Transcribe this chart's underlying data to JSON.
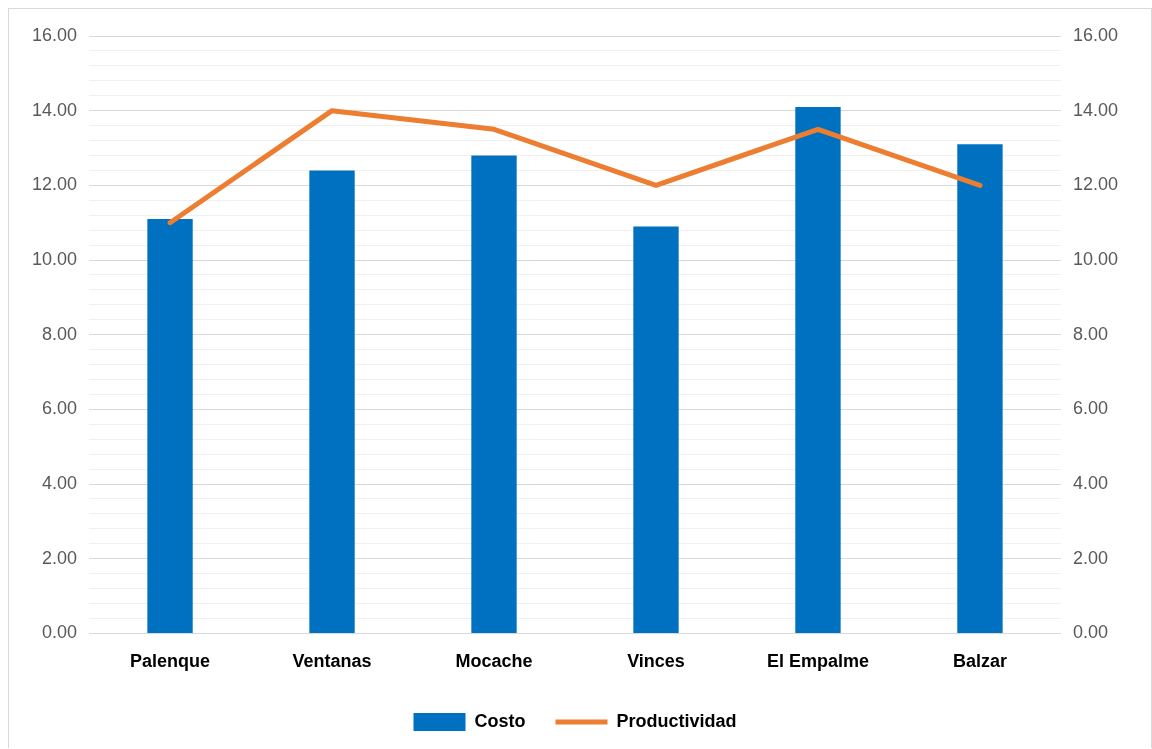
{
  "chart_data": {
    "type": "bar",
    "categories": [
      "Palenque",
      "Ventanas",
      "Mocache",
      "Vinces",
      "El Empalme",
      "Balzar"
    ],
    "series": [
      {
        "name": "Costo",
        "color": "#0070c0",
        "values": [
          11.1,
          12.4,
          12.8,
          10.9,
          14.1,
          13.1
        ]
      },
      {
        "name": "Productividad",
        "type": "line",
        "axis": "y2",
        "color": "#ed7d31",
        "values": [
          11.0,
          14.0,
          13.5,
          12.0,
          13.5,
          12.0
        ]
      }
    ],
    "ylim": [
      0,
      16
    ],
    "y2lim": [
      0,
      16
    ],
    "yticks": [
      {
        "value": 0,
        "label": "0.00"
      },
      {
        "value": 0.4,
        "label": null
      },
      {
        "value": 0.8,
        "label": null
      },
      {
        "value": 1.2,
        "label": null
      },
      {
        "value": 1.6,
        "label": null
      },
      {
        "value": 2,
        "label": "2.00"
      },
      {
        "value": 2.4,
        "label": null
      },
      {
        "value": 2.8,
        "label": null
      },
      {
        "value": 3.2,
        "label": null
      },
      {
        "value": 3.6,
        "label": null
      },
      {
        "value": 4,
        "label": "4.00"
      },
      {
        "value": 4.4,
        "label": null
      },
      {
        "value": 4.8,
        "label": null
      },
      {
        "value": 5.2,
        "label": null
      },
      {
        "value": 5.6,
        "label": null
      },
      {
        "value": 6,
        "label": "6.00"
      },
      {
        "value": 6.4,
        "label": null
      },
      {
        "value": 6.8,
        "label": null
      },
      {
        "value": 7.2,
        "label": null
      },
      {
        "value": 7.6,
        "label": null
      },
      {
        "value": 8,
        "label": "8.00"
      },
      {
        "value": 8.4,
        "label": null
      },
      {
        "value": 8.8,
        "label": null
      },
      {
        "value": 9.2,
        "label": null
      },
      {
        "value": 9.6,
        "label": null
      },
      {
        "value": 10,
        "label": "10.00"
      },
      {
        "value": 10.4,
        "label": null
      },
      {
        "value": 10.8,
        "label": null
      },
      {
        "value": 11.2,
        "label": null
      },
      {
        "value": 11.6,
        "label": null
      },
      {
        "value": 12,
        "label": "12.00"
      },
      {
        "value": 12.4,
        "label": null
      },
      {
        "value": 12.8,
        "label": null
      },
      {
        "value": 13.2,
        "label": null
      },
      {
        "value": 13.6,
        "label": null
      },
      {
        "value": 14,
        "label": "14.00"
      },
      {
        "value": 14.4,
        "label": null
      },
      {
        "value": 14.8,
        "label": null
      },
      {
        "value": 15.2,
        "label": null
      },
      {
        "value": 15.6,
        "label": null
      },
      {
        "value": 16,
        "label": "16.00"
      }
    ],
    "y2ticks": [
      {
        "value": 0,
        "label": "0.00"
      },
      {
        "value": 2,
        "label": "2.00"
      },
      {
        "value": 4,
        "label": "4.00"
      },
      {
        "value": 6,
        "label": "6.00"
      },
      {
        "value": 8,
        "label": "8.00"
      },
      {
        "value": 10,
        "label": "10.00"
      },
      {
        "value": 12,
        "label": "12.00"
      },
      {
        "value": 14,
        "label": "14.00"
      },
      {
        "value": 16,
        "label": "16.00"
      }
    ],
    "grid": "y",
    "legend": "bottom",
    "marker": "none",
    "line_style": "solid"
  }
}
